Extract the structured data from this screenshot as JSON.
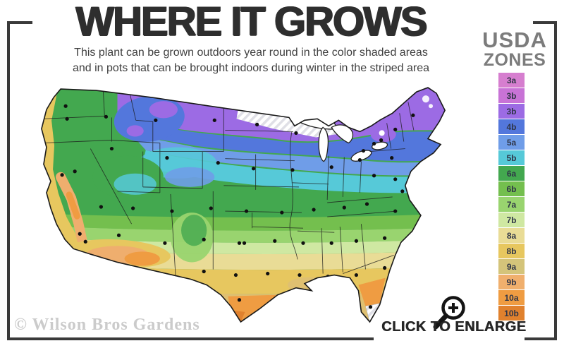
{
  "header": {
    "title": "WHERE IT GROWS",
    "subtitle_line1": "This plant can be grown outdoors year round in the color shaded areas",
    "subtitle_line2": "and in pots that can be brought indoors during winter in the striped area"
  },
  "legend": {
    "title_line1": "USDA",
    "title_line2": "ZONES",
    "zones": [
      {
        "label": "3a",
        "color": "#d67ecf"
      },
      {
        "label": "3b",
        "color": "#c873d6"
      },
      {
        "label": "3b",
        "color": "#9c6be4"
      },
      {
        "label": "4b",
        "color": "#5377dc"
      },
      {
        "label": "5a",
        "color": "#6f9de8"
      },
      {
        "label": "5b",
        "color": "#56c9d8"
      },
      {
        "label": "6a",
        "color": "#43a84f"
      },
      {
        "label": "6b",
        "color": "#74bf4e"
      },
      {
        "label": "7a",
        "color": "#99d46f"
      },
      {
        "label": "7b",
        "color": "#cfe8a2"
      },
      {
        "label": "8a",
        "color": "#e9dc96"
      },
      {
        "label": "8b",
        "color": "#e7c75f"
      },
      {
        "label": "9a",
        "color": "#d4c47a"
      },
      {
        "label": "9b",
        "color": "#f0af6d"
      },
      {
        "label": "10a",
        "color": "#ef9c42"
      },
      {
        "label": "10b",
        "color": "#e0812e"
      }
    ]
  },
  "map": {
    "watermark": "© Wilson Bros Gardens",
    "description": "USDA hardiness zone map of the continental United States"
  },
  "actions": {
    "enlarge_label": "CLICK TO ENLARGE"
  },
  "icons": {
    "enlarge": "magnifier-plus-icon"
  },
  "frame_color": "#3a3a3a"
}
